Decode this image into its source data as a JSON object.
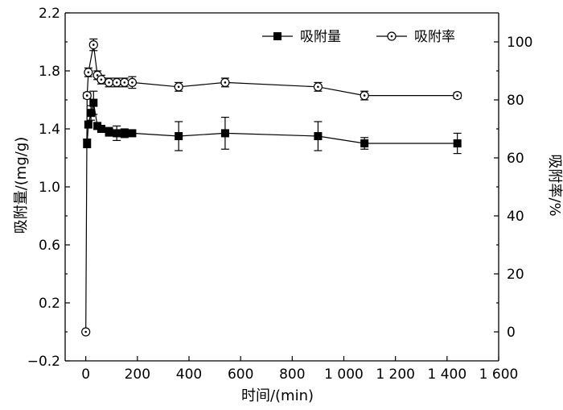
{
  "chart_data": {
    "type": "line",
    "xlabel": "时间/(min)",
    "ylabel_left": "吸附量/(mg/g)",
    "ylabel_right": "吸附率/%",
    "xlim": [
      -80,
      1600
    ],
    "ylim_left": [
      -0.2,
      2.2
    ],
    "ylim_right": [
      -10,
      110
    ],
    "x_ticks": [
      0,
      200,
      400,
      600,
      800,
      1000,
      1200,
      1400,
      1600
    ],
    "x_tick_labels": [
      "0",
      "200",
      "400",
      "600",
      "800",
      "1 000",
      "1 200",
      "1 400",
      "1 600"
    ],
    "y_left_ticks": [
      -0.2,
      0.2,
      0.6,
      1.0,
      1.4,
      1.8,
      2.2
    ],
    "y_left_tick_labels": [
      "−0.2",
      "0.2",
      "0.6",
      "1.0",
      "1.4",
      "1.8",
      "2.2"
    ],
    "y_right_ticks": [
      0,
      20,
      40,
      60,
      80,
      100
    ],
    "y_right_tick_labels": [
      "0",
      "20",
      "40",
      "60",
      "80",
      "100"
    ],
    "legend_placement": "top-right",
    "grid": false,
    "series": [
      {
        "name": "吸附量",
        "axis": "left",
        "marker": "filled-square",
        "x": [
          5,
          10,
          20,
          30,
          45,
          60,
          90,
          120,
          150,
          180,
          360,
          540,
          900,
          1080,
          1440
        ],
        "y": [
          1.3,
          1.43,
          1.51,
          1.58,
          1.42,
          1.4,
          1.38,
          1.37,
          1.37,
          1.37,
          1.35,
          1.37,
          1.35,
          1.3,
          1.3
        ],
        "err": [
          0.03,
          0.02,
          0.05,
          0.08,
          0.02,
          0.02,
          0.03,
          0.05,
          0.03,
          0.02,
          0.1,
          0.11,
          0.1,
          0.04,
          0.07
        ]
      },
      {
        "name": "吸附率",
        "axis": "right",
        "marker": "open-circle-dot",
        "x": [
          0,
          5,
          10,
          30,
          45,
          60,
          90,
          120,
          150,
          180,
          360,
          540,
          900,
          1080,
          1440
        ],
        "y": [
          0,
          81.5,
          89.5,
          99.0,
          88.5,
          87.0,
          86.0,
          86.0,
          86.0,
          86.0,
          84.5,
          86.0,
          84.5,
          81.5,
          81.5
        ],
        "err": [
          0,
          1.0,
          1.5,
          2.0,
          1.5,
          1.5,
          1.5,
          1.5,
          1.5,
          2.0,
          1.5,
          1.5,
          1.5,
          1.5,
          1.0
        ]
      }
    ]
  }
}
